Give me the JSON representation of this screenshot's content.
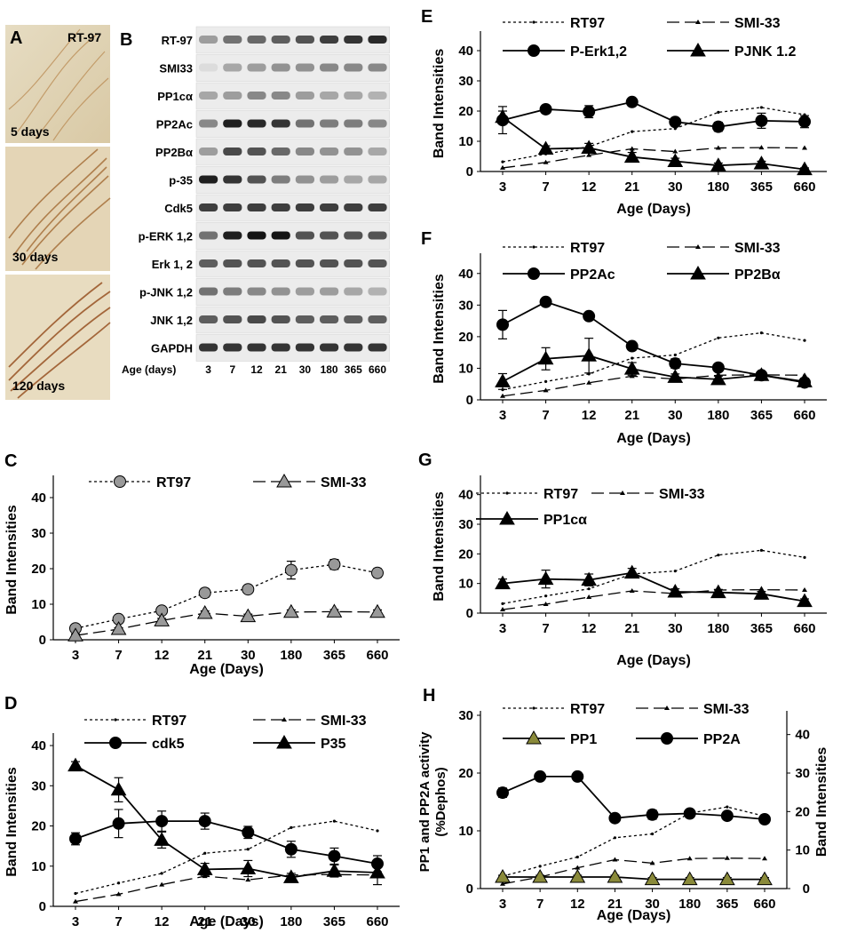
{
  "panel_a": {
    "letter": "A",
    "stain": "RT-97",
    "images": [
      {
        "label": "5 days"
      },
      {
        "label": "30 days"
      },
      {
        "label": "120 days"
      }
    ]
  },
  "panel_b": {
    "letter": "B",
    "age_label": "Age (days)",
    "ages": [
      "3",
      "7",
      "12",
      "21",
      "30",
      "180",
      "365",
      "660"
    ],
    "blots": [
      {
        "label": "RT-97",
        "intensity": [
          0.35,
          0.55,
          0.6,
          0.65,
          0.7,
          0.8,
          0.85,
          0.9
        ]
      },
      {
        "label": "SMI33",
        "intensity": [
          0.05,
          0.3,
          0.35,
          0.4,
          0.4,
          0.45,
          0.45,
          0.45
        ]
      },
      {
        "label": "PP1cα",
        "intensity": [
          0.3,
          0.35,
          0.45,
          0.45,
          0.35,
          0.3,
          0.3,
          0.25
        ]
      },
      {
        "label": "PP2Ac",
        "intensity": [
          0.45,
          0.95,
          0.9,
          0.85,
          0.55,
          0.5,
          0.5,
          0.45
        ]
      },
      {
        "label": "PP2Bα",
        "intensity": [
          0.35,
          0.75,
          0.7,
          0.6,
          0.45,
          0.4,
          0.4,
          0.3
        ]
      },
      {
        "label": "p-35",
        "intensity": [
          0.95,
          0.85,
          0.7,
          0.5,
          0.4,
          0.35,
          0.3,
          0.3
        ]
      },
      {
        "label": "Cdk5",
        "intensity": [
          0.8,
          0.8,
          0.8,
          0.8,
          0.8,
          0.8,
          0.8,
          0.8
        ]
      },
      {
        "label": "p-ERK 1,2",
        "intensity": [
          0.55,
          0.95,
          1.0,
          1.0,
          0.7,
          0.7,
          0.7,
          0.7
        ]
      },
      {
        "label": "Erk 1, 2",
        "intensity": [
          0.65,
          0.7,
          0.7,
          0.7,
          0.7,
          0.7,
          0.7,
          0.7
        ]
      },
      {
        "label": "p-JNK 1,2",
        "intensity": [
          0.55,
          0.5,
          0.45,
          0.4,
          0.35,
          0.35,
          0.3,
          0.25
        ]
      },
      {
        "label": "JNK 1,2",
        "intensity": [
          0.65,
          0.7,
          0.75,
          0.7,
          0.65,
          0.65,
          0.65,
          0.65
        ]
      },
      {
        "label": "GAPDH",
        "intensity": [
          0.85,
          0.85,
          0.85,
          0.85,
          0.85,
          0.85,
          0.85,
          0.85
        ]
      }
    ]
  },
  "chart_data": [
    {
      "id": "C",
      "type": "line",
      "letter": "C",
      "categories": [
        "3",
        "7",
        "12",
        "21",
        "30",
        "180",
        "365",
        "660"
      ],
      "xlabel": "Age (Days)",
      "ylabel": "Band Intensities",
      "ylim": [
        0,
        45
      ],
      "yticks": [
        0,
        10,
        20,
        30,
        40
      ],
      "legend": [
        {
          "series": 0,
          "label": "RT97"
        },
        {
          "series": 1,
          "label": "SMI-33"
        }
      ],
      "series": [
        {
          "name": "RT97",
          "values": [
            3.2,
            5.8,
            8.2,
            13.2,
            14.2,
            19.6,
            21.2,
            18.8
          ],
          "errors": [
            0.6,
            0.6,
            0.6,
            1.2,
            0.6,
            2.5,
            1.4,
            1.2
          ],
          "marker": "circle",
          "dash": "dotted",
          "fill": "#999999"
        },
        {
          "name": "SMI-33",
          "values": [
            1.2,
            3.0,
            5.4,
            7.5,
            6.6,
            7.8,
            7.9,
            7.8
          ],
          "errors": [
            0.4,
            0.4,
            0.6,
            0.6,
            0.6,
            0.6,
            0.6,
            0.6
          ],
          "marker": "triangle",
          "dash": "longdash",
          "fill": "#999999"
        }
      ]
    },
    {
      "id": "D",
      "type": "line",
      "letter": "D",
      "categories": [
        "3",
        "7",
        "12",
        "21",
        "30",
        "180",
        "365",
        "660"
      ],
      "xlabel": "Age (Days)",
      "ylabel": "Band Intensities",
      "ylim": [
        0,
        42
      ],
      "yticks": [
        0,
        10,
        20,
        30,
        40
      ],
      "legend": [
        {
          "series": 0,
          "label": "RT97"
        },
        {
          "series": 1,
          "label": "SMI-33"
        },
        {
          "series": 2,
          "label": "cdk5"
        },
        {
          "series": 3,
          "label": "P35"
        }
      ],
      "series": [
        {
          "name": "RT97",
          "values": [
            3.2,
            5.8,
            8.2,
            13.2,
            14.2,
            19.6,
            21.2,
            18.8
          ],
          "errors": [],
          "marker": "smalldot",
          "dash": "dotted",
          "fill": "#000000"
        },
        {
          "name": "SMI-33",
          "values": [
            1.2,
            3.0,
            5.4,
            7.5,
            6.6,
            7.8,
            7.9,
            7.8
          ],
          "errors": [],
          "marker": "smalltri",
          "dash": "longdash",
          "fill": "#000000"
        },
        {
          "name": "cdk5",
          "values": [
            16.8,
            20.6,
            21.2,
            21.2,
            18.4,
            14.2,
            12.5,
            10.6
          ],
          "errors": [
            1.5,
            3.5,
            2.5,
            2.0,
            1.5,
            2.0,
            2.0,
            2.0
          ],
          "marker": "circle",
          "dash": "solid",
          "fill": "#000000"
        },
        {
          "name": "P35",
          "values": [
            35.0,
            29.0,
            16.5,
            9.2,
            9.4,
            7.2,
            8.8,
            8.4
          ],
          "errors": [
            1.0,
            3.0,
            2.0,
            1.5,
            2.0,
            1.0,
            1.5,
            3.0
          ],
          "marker": "triangle",
          "dash": "solid",
          "fill": "#000000"
        }
      ]
    },
    {
      "id": "E",
      "type": "line",
      "letter": "E",
      "categories": [
        "3",
        "7",
        "12",
        "21",
        "30",
        "180",
        "365",
        "660"
      ],
      "xlabel": "Age (Days)",
      "ylabel": "Band Intensities",
      "ylim": [
        0,
        45
      ],
      "yticks": [
        0,
        10,
        20,
        30,
        40
      ],
      "legend": [
        {
          "series": 0,
          "label": "RT97"
        },
        {
          "series": 1,
          "label": "SMI-33"
        },
        {
          "series": 2,
          "label": "P-Erk1,2"
        },
        {
          "series": 3,
          "label": "PJNK 1.2"
        }
      ],
      "series": [
        {
          "name": "RT97",
          "values": [
            3.2,
            5.8,
            8.2,
            13.2,
            14.2,
            19.6,
            21.2,
            18.8
          ],
          "errors": [],
          "marker": "smalldot",
          "dash": "dotted",
          "fill": "#000000"
        },
        {
          "name": "SMI-33",
          "values": [
            1.2,
            3.0,
            5.4,
            7.5,
            6.6,
            7.8,
            7.9,
            7.8
          ],
          "errors": [],
          "marker": "smalltri",
          "dash": "longdash",
          "fill": "#000000"
        },
        {
          "name": "P-Erk1,2",
          "values": [
            17.0,
            20.6,
            19.8,
            23.0,
            16.4,
            14.8,
            16.8,
            16.5
          ],
          "errors": [
            4.5,
            1.0,
            2.0,
            0.8,
            1.0,
            1.5,
            2.5,
            2.0
          ],
          "marker": "circle",
          "dash": "solid",
          "fill": "#000000"
        },
        {
          "name": "PJNK 1.2",
          "values": [
            18.0,
            7.5,
            7.8,
            4.8,
            3.4,
            2.0,
            2.6,
            0.7
          ],
          "errors": [
            2.0,
            1.0,
            1.5,
            1.5,
            1.0,
            0.8,
            0.8,
            0.5
          ],
          "marker": "triangle",
          "dash": "solid",
          "fill": "#000000"
        }
      ]
    },
    {
      "id": "F",
      "type": "line",
      "letter": "F",
      "categories": [
        "3",
        "7",
        "12",
        "21",
        "30",
        "180",
        "365",
        "660"
      ],
      "xlabel": "Age (Days)",
      "ylabel": "Band Intensities",
      "ylim": [
        0,
        45
      ],
      "yticks": [
        0,
        10,
        20,
        30,
        40
      ],
      "legend": [
        {
          "series": 0,
          "label": "RT97"
        },
        {
          "series": 1,
          "label": "SMI-33"
        },
        {
          "series": 2,
          "label": "PP2Ac"
        },
        {
          "series": 3,
          "label": "PP2Bα"
        }
      ],
      "series": [
        {
          "name": "RT97",
          "values": [
            3.2,
            5.8,
            8.2,
            13.2,
            14.2,
            19.6,
            21.2,
            18.8
          ],
          "errors": [],
          "marker": "smalldot",
          "dash": "dotted",
          "fill": "#000000"
        },
        {
          "name": "SMI-33",
          "values": [
            1.2,
            3.0,
            5.4,
            7.5,
            6.6,
            7.8,
            7.9,
            7.8
          ],
          "errors": [],
          "marker": "smalltri",
          "dash": "longdash",
          "fill": "#000000"
        },
        {
          "name": "PP2Ac",
          "values": [
            23.8,
            31.0,
            26.5,
            17.0,
            11.5,
            10.2,
            7.8,
            5.5
          ],
          "errors": [
            4.5,
            1.2,
            1.0,
            0.8,
            1.5,
            1.0,
            1.0,
            1.0
          ],
          "marker": "circle",
          "dash": "solid",
          "fill": "#000000"
        },
        {
          "name": "PP2Bα",
          "values": [
            5.8,
            13.0,
            14.0,
            9.8,
            7.2,
            6.5,
            7.8,
            5.8
          ],
          "errors": [
            2.5,
            3.5,
            5.5,
            2.0,
            1.0,
            1.0,
            1.0,
            1.0
          ],
          "marker": "triangle",
          "dash": "solid",
          "fill": "#000000"
        }
      ]
    },
    {
      "id": "G",
      "type": "line",
      "letter": "G",
      "categories": [
        "3",
        "7",
        "12",
        "21",
        "30",
        "180",
        "365",
        "660"
      ],
      "xlabel": "Age (Days)",
      "ylabel": "Band Intensities",
      "ylim": [
        0,
        45
      ],
      "yticks": [
        0,
        10,
        20,
        30,
        40
      ],
      "legend": [
        {
          "series": 0,
          "label": "RT97"
        },
        {
          "series": 1,
          "label": "SMI-33"
        },
        {
          "series": 2,
          "label": "PP1cα"
        }
      ],
      "series": [
        {
          "name": "RT97",
          "values": [
            3.2,
            5.8,
            8.2,
            13.2,
            14.2,
            19.6,
            21.2,
            18.8
          ],
          "errors": [],
          "marker": "smalldot",
          "dash": "dotted",
          "fill": "#000000"
        },
        {
          "name": "SMI-33",
          "values": [
            1.2,
            3.0,
            5.4,
            7.5,
            6.6,
            7.8,
            7.9,
            7.8
          ],
          "errors": [],
          "marker": "smalltri",
          "dash": "longdash",
          "fill": "#000000"
        },
        {
          "name": "PP1cα",
          "values": [
            10.0,
            11.5,
            11.2,
            13.6,
            7.2,
            7.0,
            6.5,
            4.0
          ],
          "errors": [
            1.5,
            3.0,
            2.0,
            1.5,
            1.0,
            1.0,
            0.8,
            0.8
          ],
          "marker": "triangle",
          "dash": "solid",
          "fill": "#000000"
        }
      ]
    },
    {
      "id": "H",
      "type": "line",
      "letter": "H",
      "categories": [
        "3",
        "7",
        "12",
        "21",
        "30",
        "180",
        "365",
        "660"
      ],
      "xlabel": "Age (Days)",
      "ylabel": "PP1 and PP2A activity\n(%Dephos)",
      "ylim": [
        0,
        30
      ],
      "yticks": [
        0,
        10,
        20,
        30
      ],
      "y2label": "Band Intensities",
      "y2lim": [
        0,
        45
      ],
      "y2ticks": [
        0,
        10,
        20,
        30,
        40
      ],
      "legend": [
        {
          "series": 0,
          "label": "RT97"
        },
        {
          "series": 1,
          "label": "SMI-33"
        },
        {
          "series": 2,
          "label": "PP1"
        },
        {
          "series": 3,
          "label": "PP2A"
        }
      ],
      "series": [
        {
          "name": "RT97",
          "axis": "right",
          "values": [
            3.2,
            5.8,
            8.2,
            13.2,
            14.2,
            19.6,
            21.2,
            18.8
          ],
          "errors": [],
          "marker": "smalldot",
          "dash": "dotted",
          "fill": "#000000"
        },
        {
          "name": "SMI-33",
          "axis": "right",
          "values": [
            1.2,
            3.0,
            5.4,
            7.5,
            6.6,
            7.8,
            7.9,
            7.8
          ],
          "errors": [],
          "marker": "smalltri",
          "dash": "longdash",
          "fill": "#000000"
        },
        {
          "name": "PP1",
          "values": [
            2.0,
            2.0,
            2.0,
            2.0,
            1.6,
            1.6,
            1.6,
            1.6
          ],
          "errors": [
            0.3,
            0.3,
            0.3,
            0.3,
            0.3,
            0.3,
            0.3,
            0.3
          ],
          "marker": "triangle",
          "dash": "solid",
          "fill": "#8a8a3a"
        },
        {
          "name": "PP2A",
          "values": [
            16.6,
            19.4,
            19.4,
            12.2,
            12.8,
            13.0,
            12.6,
            12.0
          ],
          "errors": [
            0.8,
            0.4,
            0.4,
            0.4,
            0.8,
            0.4,
            0.4,
            0.4
          ],
          "marker": "circle",
          "dash": "solid",
          "fill": "#000000"
        }
      ]
    }
  ]
}
